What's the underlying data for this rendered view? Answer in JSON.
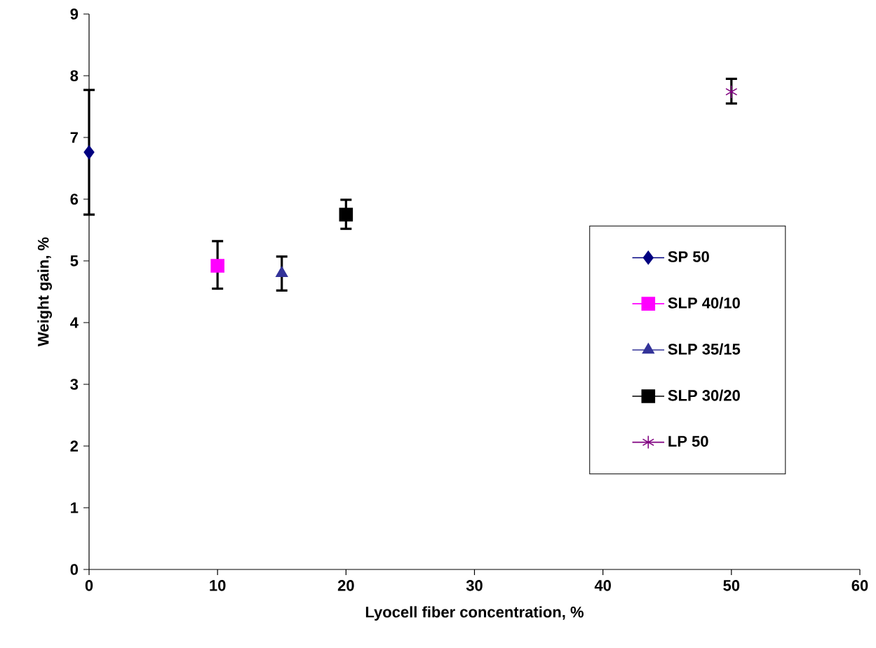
{
  "chart_data": {
    "type": "scatter",
    "xlabel": "Lyocell fiber concentration, %",
    "ylabel": "Weight gain, %",
    "xlim": [
      0,
      60
    ],
    "xticks": [
      0,
      10,
      20,
      30,
      40,
      50,
      60
    ],
    "ylim": [
      0,
      9
    ],
    "yticks": [
      0,
      1,
      2,
      3,
      4,
      5,
      6,
      7,
      8,
      9
    ],
    "grid": false,
    "legend": "bottom right",
    "series": [
      {
        "name": "SP 50",
        "color": "#000080",
        "marker": "diamond",
        "x": [
          0
        ],
        "values": [
          6.76
        ],
        "errors": [
          [
            5.75,
            7.77
          ]
        ]
      },
      {
        "name": "SLP 40/10",
        "color": "#ff00ff",
        "marker": "square",
        "x": [
          10
        ],
        "values": [
          4.92
        ],
        "errors": [
          [
            4.55,
            5.32
          ]
        ]
      },
      {
        "name": "SLP 35/15",
        "color": "#333399",
        "marker": "triangle",
        "x": [
          15
        ],
        "values": [
          4.8
        ],
        "errors": [
          [
            4.52,
            5.07
          ]
        ]
      },
      {
        "name": "SLP 30/20",
        "color": "#000000",
        "marker": "square",
        "x": [
          20
        ],
        "values": [
          5.75
        ],
        "errors": [
          [
            5.52,
            5.99
          ]
        ]
      },
      {
        "name": "LP 50",
        "color": "#800080",
        "marker": "cross",
        "x": [
          50
        ],
        "values": [
          7.74
        ],
        "errors": [
          [
            7.55,
            7.95
          ]
        ]
      }
    ]
  }
}
